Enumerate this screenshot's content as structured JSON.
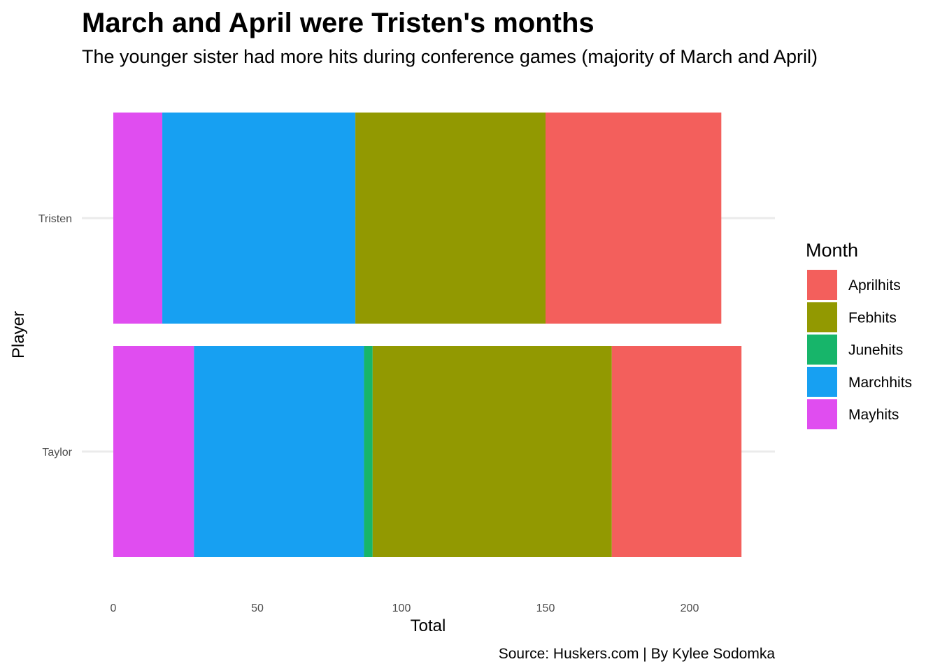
{
  "chart_data": {
    "type": "bar",
    "orientation": "horizontal",
    "stacked": true,
    "title": "March and April were Tristen's months",
    "subtitle": "The younger sister had more hits during conference games (majority of March and April)",
    "xlabel": "Total",
    "ylabel": "Player",
    "caption": "Source: Huskers.com | By Kylee Sodomka",
    "categories": [
      "Tristen",
      "Taylor"
    ],
    "xlim": [
      0,
      230
    ],
    "xticks": [
      0,
      50,
      100,
      150,
      200
    ],
    "grid": true,
    "legend": {
      "title": "Month",
      "position": "right"
    },
    "stack_order": [
      "Mayhits",
      "Marchhits",
      "Junehits",
      "Febhits",
      "Aprilhits"
    ],
    "series": [
      {
        "name": "Aprilhits",
        "color": "#F35F5C",
        "values": [
          61,
          45
        ]
      },
      {
        "name": "Febhits",
        "color": "#929901",
        "values": [
          66,
          83
        ]
      },
      {
        "name": "Junehits",
        "color": "#17B56A",
        "values": [
          0,
          3
        ]
      },
      {
        "name": "Marchhits",
        "color": "#17A0F2",
        "values": [
          67,
          59
        ]
      },
      {
        "name": "Mayhits",
        "color": "#E04DF0",
        "values": [
          17,
          28
        ]
      }
    ]
  }
}
